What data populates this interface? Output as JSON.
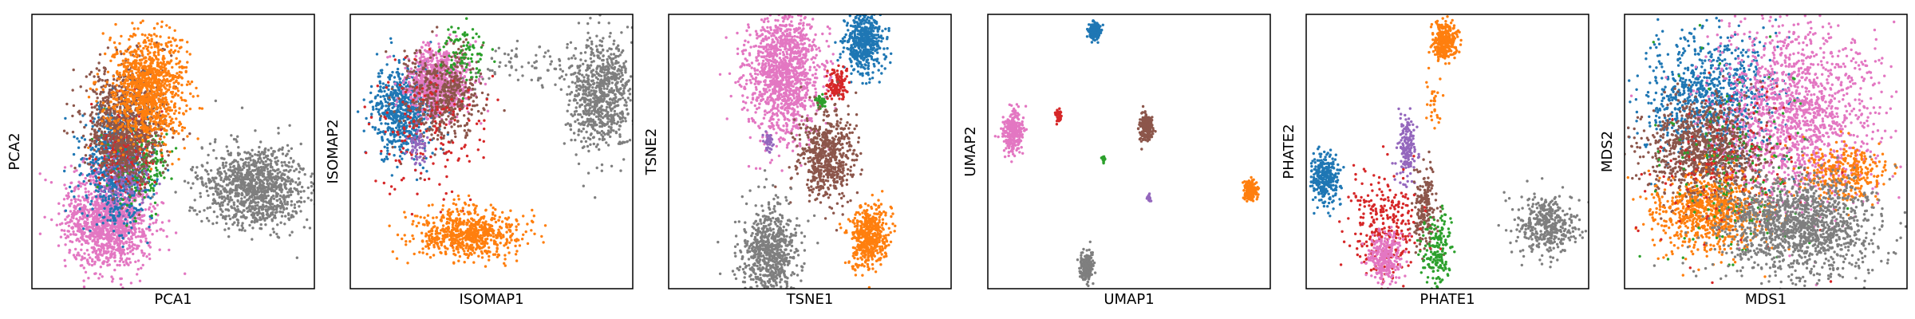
{
  "figure": {
    "panel_colors": {
      "blue": "#1f77b4",
      "orange": "#ff7f0e",
      "green": "#2ca02c",
      "red": "#d62728",
      "purple": "#9467bd",
      "brown": "#8c564b",
      "pink": "#e377c2",
      "gray": "#7f7f7f"
    }
  },
  "chart_data": [
    {
      "type": "scatter",
      "xlabel": "PCA1",
      "ylabel": "PCA2",
      "grid": false,
      "legend": "none",
      "ticks": "hidden",
      "clusters": [
        {
          "color": "#7f7f7f",
          "center": [
            0.79,
            0.63
          ],
          "spread": [
            0.09,
            0.075
          ],
          "n": 1100
        },
        {
          "color": "#e377c2",
          "center": [
            0.27,
            0.76
          ],
          "spread": [
            0.075,
            0.085
          ],
          "n": 1300
        },
        {
          "color": "#1f77b4",
          "center": [
            0.3,
            0.55
          ],
          "spread": [
            0.06,
            0.1
          ],
          "n": 700
        },
        {
          "color": "#2ca02c",
          "center": [
            0.38,
            0.53
          ],
          "spread": [
            0.05,
            0.08
          ],
          "n": 250
        },
        {
          "color": "#d62728",
          "center": [
            0.33,
            0.5
          ],
          "spread": [
            0.05,
            0.07
          ],
          "n": 250
        },
        {
          "color": "#9467bd",
          "center": [
            0.33,
            0.6
          ],
          "spread": [
            0.04,
            0.05
          ],
          "n": 120
        },
        {
          "color": "#8c564b",
          "center": [
            0.33,
            0.4
          ],
          "spread": [
            0.07,
            0.1
          ],
          "n": 900
        },
        {
          "color": "#ff7f0e",
          "center": [
            0.41,
            0.27
          ],
          "spread": [
            0.065,
            0.1
          ],
          "n": 1100
        }
      ]
    },
    {
      "type": "scatter",
      "xlabel": "ISOMAP1",
      "ylabel": "ISOMAP2",
      "grid": false,
      "legend": "none",
      "ticks": "hidden",
      "clusters": [
        {
          "color": "#7f7f7f",
          "center": [
            0.89,
            0.29
          ],
          "spread": [
            0.055,
            0.1
          ],
          "n": 800
        },
        {
          "color": "#7f7f7f",
          "center": [
            0.63,
            0.18
          ],
          "spread": [
            0.12,
            0.04
          ],
          "n": 80
        },
        {
          "color": "#1f77b4",
          "center": [
            0.19,
            0.35
          ],
          "spread": [
            0.05,
            0.08
          ],
          "n": 700
        },
        {
          "color": "#e377c2",
          "center": [
            0.31,
            0.25
          ],
          "spread": [
            0.055,
            0.06
          ],
          "n": 900
        },
        {
          "color": "#8c564b",
          "center": [
            0.33,
            0.29
          ],
          "spread": [
            0.07,
            0.08
          ],
          "n": 500
        },
        {
          "color": "#2ca02c",
          "center": [
            0.4,
            0.15
          ],
          "spread": [
            0.04,
            0.05
          ],
          "n": 90
        },
        {
          "color": "#d62728",
          "center": [
            0.28,
            0.42
          ],
          "spread": [
            0.1,
            0.13
          ],
          "n": 160
        },
        {
          "color": "#9467bd",
          "center": [
            0.24,
            0.48
          ],
          "spread": [
            0.02,
            0.03
          ],
          "n": 60
        },
        {
          "color": "#ff7f0e",
          "center": [
            0.42,
            0.8
          ],
          "spread": [
            0.09,
            0.045
          ],
          "n": 700
        }
      ]
    },
    {
      "type": "scatter",
      "xlabel": "TSNE1",
      "ylabel": "TSNE2",
      "grid": false,
      "legend": "none",
      "ticks": "hidden",
      "clusters": [
        {
          "color": "#e377c2",
          "center": [
            0.41,
            0.21
          ],
          "spread": [
            0.065,
            0.12
          ],
          "n": 1300
        },
        {
          "color": "#1f77b4",
          "center": [
            0.69,
            0.1
          ],
          "spread": [
            0.035,
            0.055
          ],
          "n": 500
        },
        {
          "color": "#d62728",
          "center": [
            0.6,
            0.26
          ],
          "spread": [
            0.018,
            0.028
          ],
          "n": 120
        },
        {
          "color": "#2ca02c",
          "center": [
            0.54,
            0.32
          ],
          "spread": [
            0.008,
            0.012
          ],
          "n": 40
        },
        {
          "color": "#8c564b",
          "center": [
            0.56,
            0.51
          ],
          "spread": [
            0.05,
            0.085
          ],
          "n": 600
        },
        {
          "color": "#9467bd",
          "center": [
            0.35,
            0.47
          ],
          "spread": [
            0.01,
            0.02
          ],
          "n": 40
        },
        {
          "color": "#7f7f7f",
          "center": [
            0.36,
            0.86
          ],
          "spread": [
            0.05,
            0.085
          ],
          "n": 700
        },
        {
          "color": "#ff7f0e",
          "center": [
            0.71,
            0.81
          ],
          "spread": [
            0.035,
            0.055
          ],
          "n": 500
        }
      ]
    },
    {
      "type": "scatter",
      "xlabel": "UMAP1",
      "ylabel": "UMAP2",
      "grid": false,
      "legend": "none",
      "ticks": "hidden",
      "clusters": [
        {
          "color": "#1f77b4",
          "center": [
            0.38,
            0.06
          ],
          "spread": [
            0.01,
            0.015
          ],
          "n": 200
        },
        {
          "color": "#e377c2",
          "center": [
            0.09,
            0.43
          ],
          "spread": [
            0.018,
            0.035
          ],
          "n": 300
        },
        {
          "color": "#d62728",
          "center": [
            0.25,
            0.37
          ],
          "spread": [
            0.006,
            0.01
          ],
          "n": 40
        },
        {
          "color": "#8c564b",
          "center": [
            0.56,
            0.41
          ],
          "spread": [
            0.012,
            0.025
          ],
          "n": 200
        },
        {
          "color": "#2ca02c",
          "center": [
            0.41,
            0.53
          ],
          "spread": [
            0.003,
            0.006
          ],
          "n": 20
        },
        {
          "color": "#9467bd",
          "center": [
            0.57,
            0.67
          ],
          "spread": [
            0.003,
            0.006
          ],
          "n": 20
        },
        {
          "color": "#ff7f0e",
          "center": [
            0.93,
            0.64
          ],
          "spread": [
            0.01,
            0.018
          ],
          "n": 200
        },
        {
          "color": "#7f7f7f",
          "center": [
            0.35,
            0.92
          ],
          "spread": [
            0.012,
            0.025
          ],
          "n": 200
        }
      ]
    },
    {
      "type": "scatter",
      "xlabel": "PHATE1",
      "ylabel": "PHATE2",
      "grid": false,
      "legend": "none",
      "ticks": "hidden",
      "clusters": [
        {
          "color": "#ff7f0e",
          "center": [
            0.49,
            0.1
          ],
          "spread": [
            0.022,
            0.035
          ],
          "n": 300
        },
        {
          "color": "#ff7f0e",
          "center": [
            0.45,
            0.32
          ],
          "spread": [
            0.015,
            0.06
          ],
          "n": 30
        },
        {
          "color": "#1f77b4",
          "center": [
            0.07,
            0.6
          ],
          "spread": [
            0.025,
            0.045
          ],
          "n": 300
        },
        {
          "color": "#9467bd",
          "center": [
            0.36,
            0.49
          ],
          "spread": [
            0.018,
            0.06
          ],
          "n": 160
        },
        {
          "color": "#8c564b",
          "center": [
            0.42,
            0.71
          ],
          "spread": [
            0.02,
            0.07
          ],
          "n": 200
        },
        {
          "color": "#d62728",
          "center": [
            0.27,
            0.77
          ],
          "spread": [
            0.06,
            0.1
          ],
          "n": 300
        },
        {
          "color": "#e377c2",
          "center": [
            0.28,
            0.89
          ],
          "spread": [
            0.03,
            0.045
          ],
          "n": 300
        },
        {
          "color": "#2ca02c",
          "center": [
            0.46,
            0.86
          ],
          "spread": [
            0.025,
            0.07
          ],
          "n": 180
        },
        {
          "color": "#7f7f7f",
          "center": [
            0.85,
            0.77
          ],
          "spread": [
            0.055,
            0.055
          ],
          "n": 400
        }
      ]
    },
    {
      "type": "scatter",
      "xlabel": "MDS1",
      "ylabel": "MDS2",
      "grid": false,
      "legend": "none",
      "ticks": "hidden",
      "clusters": [
        {
          "color": "#1f77b4",
          "center": [
            0.3,
            0.3
          ],
          "spread": [
            0.12,
            0.12
          ],
          "n": 900
        },
        {
          "color": "#e377c2",
          "center": [
            0.6,
            0.35
          ],
          "spread": [
            0.14,
            0.17
          ],
          "n": 1500
        },
        {
          "color": "#8c564b",
          "center": [
            0.28,
            0.5
          ],
          "spread": [
            0.1,
            0.09
          ],
          "n": 1000
        },
        {
          "color": "#ff7f0e",
          "center": [
            0.3,
            0.72
          ],
          "spread": [
            0.1,
            0.07
          ],
          "n": 800
        },
        {
          "color": "#ff7f0e",
          "center": [
            0.78,
            0.58
          ],
          "spread": [
            0.07,
            0.05
          ],
          "n": 300
        },
        {
          "color": "#d62728",
          "center": [
            0.36,
            0.55
          ],
          "spread": [
            0.13,
            0.17
          ],
          "n": 150
        },
        {
          "color": "#2ca02c",
          "center": [
            0.4,
            0.55
          ],
          "spread": [
            0.15,
            0.17
          ],
          "n": 150
        },
        {
          "color": "#7f7f7f",
          "center": [
            0.62,
            0.77
          ],
          "spread": [
            0.14,
            0.09
          ],
          "n": 1400
        }
      ]
    }
  ]
}
